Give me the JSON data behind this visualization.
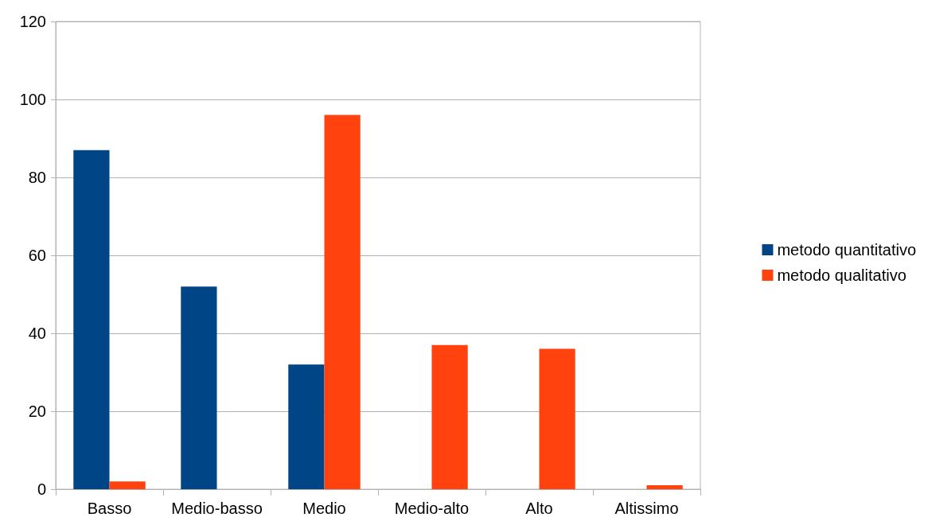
{
  "chart_data": {
    "type": "bar",
    "categories": [
      "Basso",
      "Medio-basso",
      "Medio",
      "Medio-alto",
      "Alto",
      "Altissimo"
    ],
    "series": [
      {
        "name": "metodo quantitativo",
        "color": "#004586",
        "values": [
          87,
          52,
          32,
          0,
          0,
          0
        ]
      },
      {
        "name": "metodo qualitativo",
        "color": "#ff420e",
        "values": [
          2,
          0,
          96,
          37,
          36,
          1
        ]
      }
    ],
    "ylim": [
      0,
      120
    ],
    "yticks": [
      0,
      20,
      40,
      60,
      80,
      100,
      120
    ],
    "grid": "y",
    "legend": "right"
  }
}
